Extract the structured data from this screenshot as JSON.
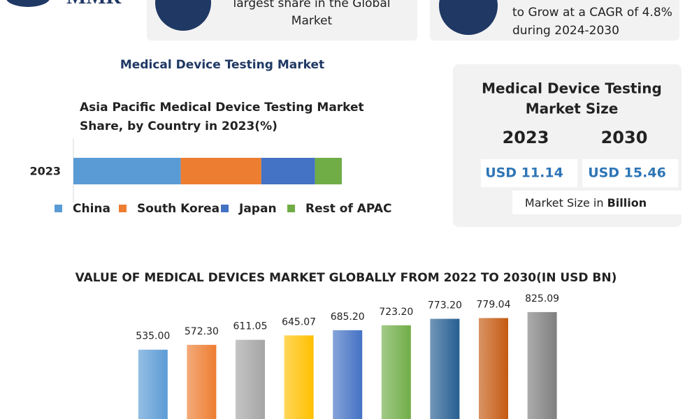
{
  "header": {
    "logo": "MMR",
    "cards": [
      {
        "text_lines": [
          "largest share in the Global",
          "Market"
        ]
      },
      {
        "text_lines": [
          "to Grow at a CAGR of 4.8%",
          "during 2024-2030"
        ]
      }
    ]
  },
  "section_title": "Medical Device Testing Market",
  "market_size": {
    "title_lines": [
      "Medical Device Testing",
      "Market Size"
    ],
    "years": [
      "2023",
      "2030"
    ],
    "values": [
      "USD 11.14",
      "USD 15.46"
    ],
    "note": "Market Size in",
    "note_unit": "Billion"
  },
  "chart_data": [
    {
      "type": "stacked_bar",
      "title_lines": [
        "Asia Pacific Medical Device Testing Market",
        "Share, by Country in 2023(%)"
      ],
      "categories": [
        "2023"
      ],
      "xlim": [
        0,
        100
      ],
      "legend": "bottom",
      "series": [
        {
          "name": "China",
          "color": "#5b9bd5",
          "values": [
            40
          ]
        },
        {
          "name": "South Korea",
          "color": "#ed7d31",
          "values": [
            30
          ]
        },
        {
          "name": "Japan",
          "color": "#4472c4",
          "values": [
            20
          ]
        },
        {
          "name": "Rest of APAC",
          "color": "#70ad47",
          "values": [
            10
          ]
        }
      ]
    },
    {
      "type": "bar",
      "title": "VALUE OF MEDICAL DEVICES MARKET GLOBALLY FROM 2022 TO 2030(IN USD BN)",
      "categories": [
        null,
        null,
        null,
        null,
        null,
        null,
        null,
        null,
        null
      ],
      "values": [
        535,
        572.3,
        611.05,
        645.07,
        685.2,
        723.2,
        773.2,
        779.04,
        825.09
      ],
      "value_labels": [
        "535.00",
        "572.30",
        "611.05",
        "645.07",
        "685.20",
        "723.20",
        "773.20",
        "779.04",
        "825.09"
      ],
      "colors": [
        "#5b9bd5",
        "#ed7d31",
        "#a5a5a5",
        "#ffc000",
        "#4472c4",
        "#70ad47",
        "#255e91",
        "#c55a11",
        "#7f7f7f"
      ],
      "ylim": [
        0,
        900
      ]
    }
  ]
}
